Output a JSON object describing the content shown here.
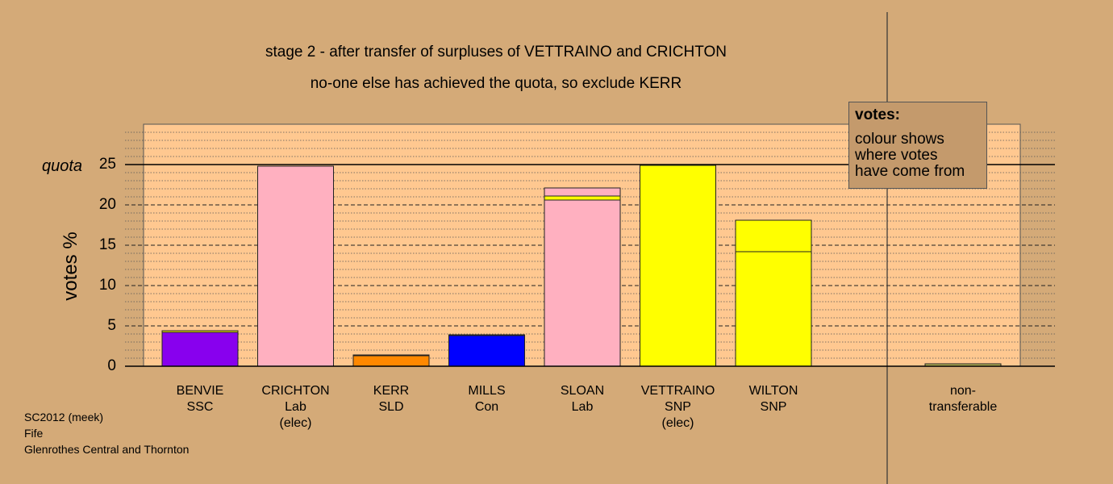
{
  "chart_data": {
    "type": "bar",
    "title": "stage 2 - after transfer of surpluses of VETTRAINO and CRICHTON",
    "subtitle": "no-one else has achieved the quota, so exclude KERR",
    "ylabel": "votes %",
    "ylim": [
      0,
      30
    ],
    "yticks": [
      "0",
      "5",
      "10",
      "15",
      "20",
      "25"
    ],
    "quota": {
      "label": "quota",
      "value": 25
    },
    "grid": true,
    "candidates": [
      {
        "name": "BENVIE",
        "party": "SSC",
        "status": "",
        "segments": [
          {
            "value": 4.2,
            "color": "#8800ee"
          },
          {
            "value": 0.2,
            "color": "#ffff00"
          }
        ]
      },
      {
        "name": "CRICHTON",
        "party": "Lab",
        "status": "(elec)",
        "segments": [
          {
            "value": 24.8,
            "color": "#ffb0c0"
          }
        ]
      },
      {
        "name": "KERR",
        "party": "SLD",
        "status": "",
        "segments": [
          {
            "value": 1.3,
            "color": "#ff8800"
          },
          {
            "value": 0.1,
            "color": "#ffb0c0"
          }
        ]
      },
      {
        "name": "MILLS",
        "party": "Con",
        "status": "",
        "segments": [
          {
            "value": 3.8,
            "color": "#0000ff"
          },
          {
            "value": 0.1,
            "color": "#ffff00"
          }
        ]
      },
      {
        "name": "SLOAN",
        "party": "Lab",
        "status": "",
        "segments": [
          {
            "value": 20.6,
            "color": "#ffb0c0"
          },
          {
            "value": 0.5,
            "color": "#ffff00"
          },
          {
            "value": 1.0,
            "color": "#ffb0c0"
          }
        ]
      },
      {
        "name": "VETTRAINO",
        "party": "SNP",
        "status": "(elec)",
        "segments": [
          {
            "value": 24.9,
            "color": "#ffff00"
          }
        ]
      },
      {
        "name": "WILTON",
        "party": "SNP",
        "status": "",
        "segments": [
          {
            "value": 14.2,
            "color": "#ffff00"
          },
          {
            "value": 3.9,
            "color": "#ffff00"
          }
        ]
      }
    ],
    "nontransferable": {
      "label1": "non-",
      "label2": "transferable",
      "value": 0.3,
      "color": "#b3b355"
    },
    "legend": {
      "title": "votes:",
      "lines": [
        "colour shows",
        "where votes",
        "have come from"
      ],
      "position": "top-right"
    }
  },
  "footer": {
    "line1": "SC2012 (meek)",
    "line2": "Fife",
    "line3": "Glenrothes Central and Thornton"
  }
}
